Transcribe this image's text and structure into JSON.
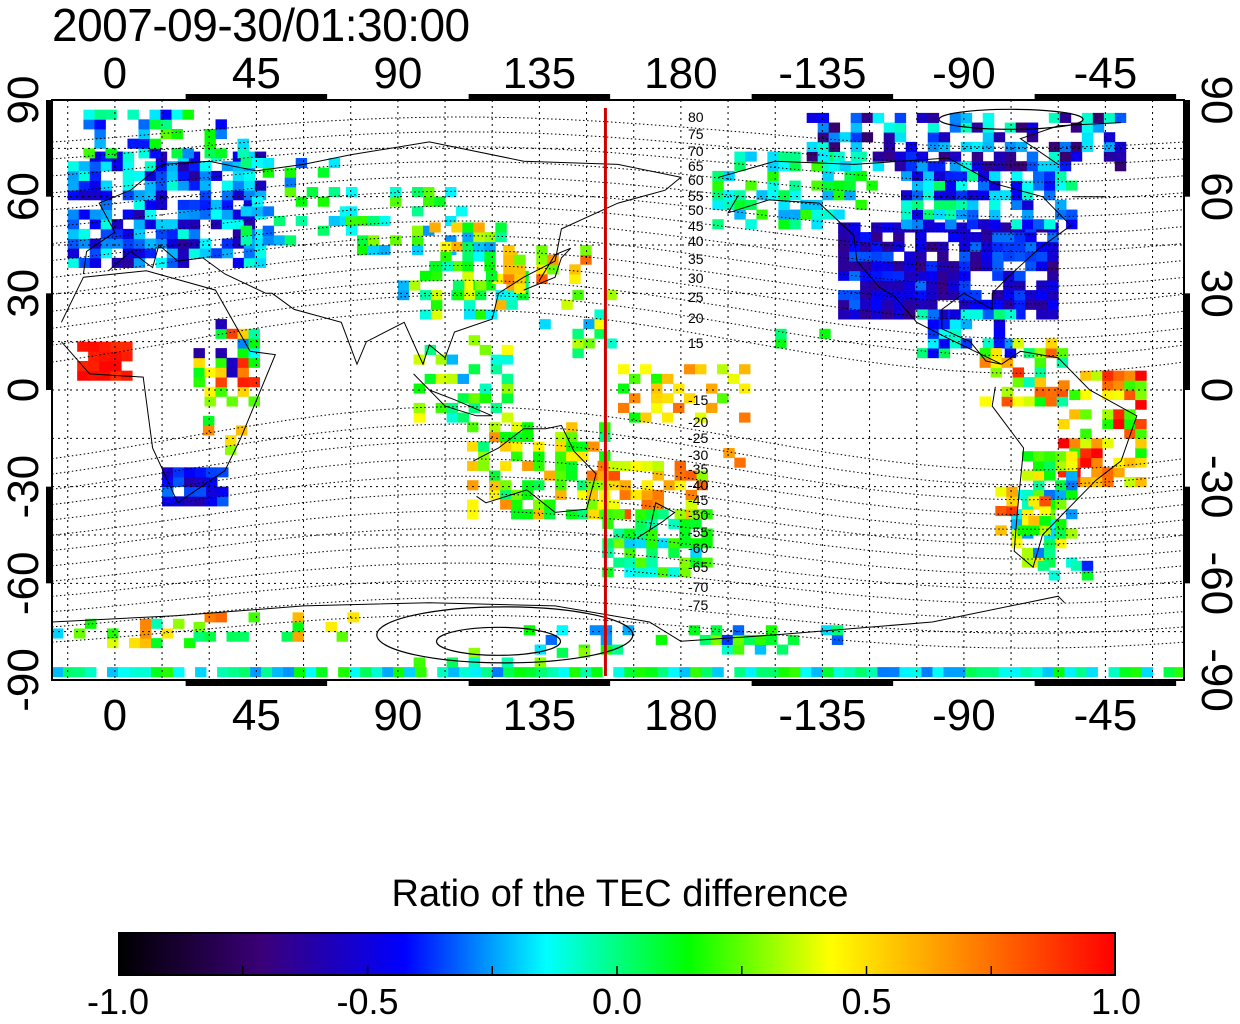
{
  "map": {
    "timestamp": "2007-09-30/01:30:00",
    "top_axis_labels": [
      "0",
      "45",
      "90",
      "135",
      "180",
      "-135",
      "-90",
      "-45"
    ],
    "bottom_axis_labels": [
      "0",
      "45",
      "90",
      "135",
      "180",
      "-135",
      "-90",
      "-45"
    ],
    "left_axis_labels": [
      "90",
      "60",
      "30",
      "0",
      "-30",
      "-60",
      "-90"
    ],
    "right_axis_labels": [
      "90",
      "60",
      "30",
      "0",
      "-30",
      "-60",
      "-90"
    ],
    "contour_labels_north": [
      "80",
      "75",
      "70",
      "65",
      "60",
      "55",
      "50",
      "45",
      "40",
      "35",
      "30",
      "25",
      "20",
      "15"
    ],
    "contour_labels_south": [
      "-15",
      "-20",
      "-25",
      "-30",
      "-35",
      "-40",
      "-45",
      "-50",
      "-55",
      "-60",
      "-65",
      "-70",
      "-75"
    ],
    "marker_line_color": "#cc0000",
    "map_extent": {
      "lon_start": -20,
      "lon_end": 340,
      "lat_min": -90,
      "lat_max": 90
    },
    "marker_lon": 156
  },
  "colorbar": {
    "title": "Ratio of the TEC difference",
    "tick_labels": [
      "-1.0",
      "-0.5",
      "0.0",
      "0.5",
      "1.0"
    ],
    "range": [
      -1.0,
      1.0
    ],
    "gradient_colors": [
      "#000000",
      "#3a0078",
      "#0000ff",
      "#00ffff",
      "#00ff00",
      "#ffff00",
      "#ff8000",
      "#ff0000"
    ]
  }
}
